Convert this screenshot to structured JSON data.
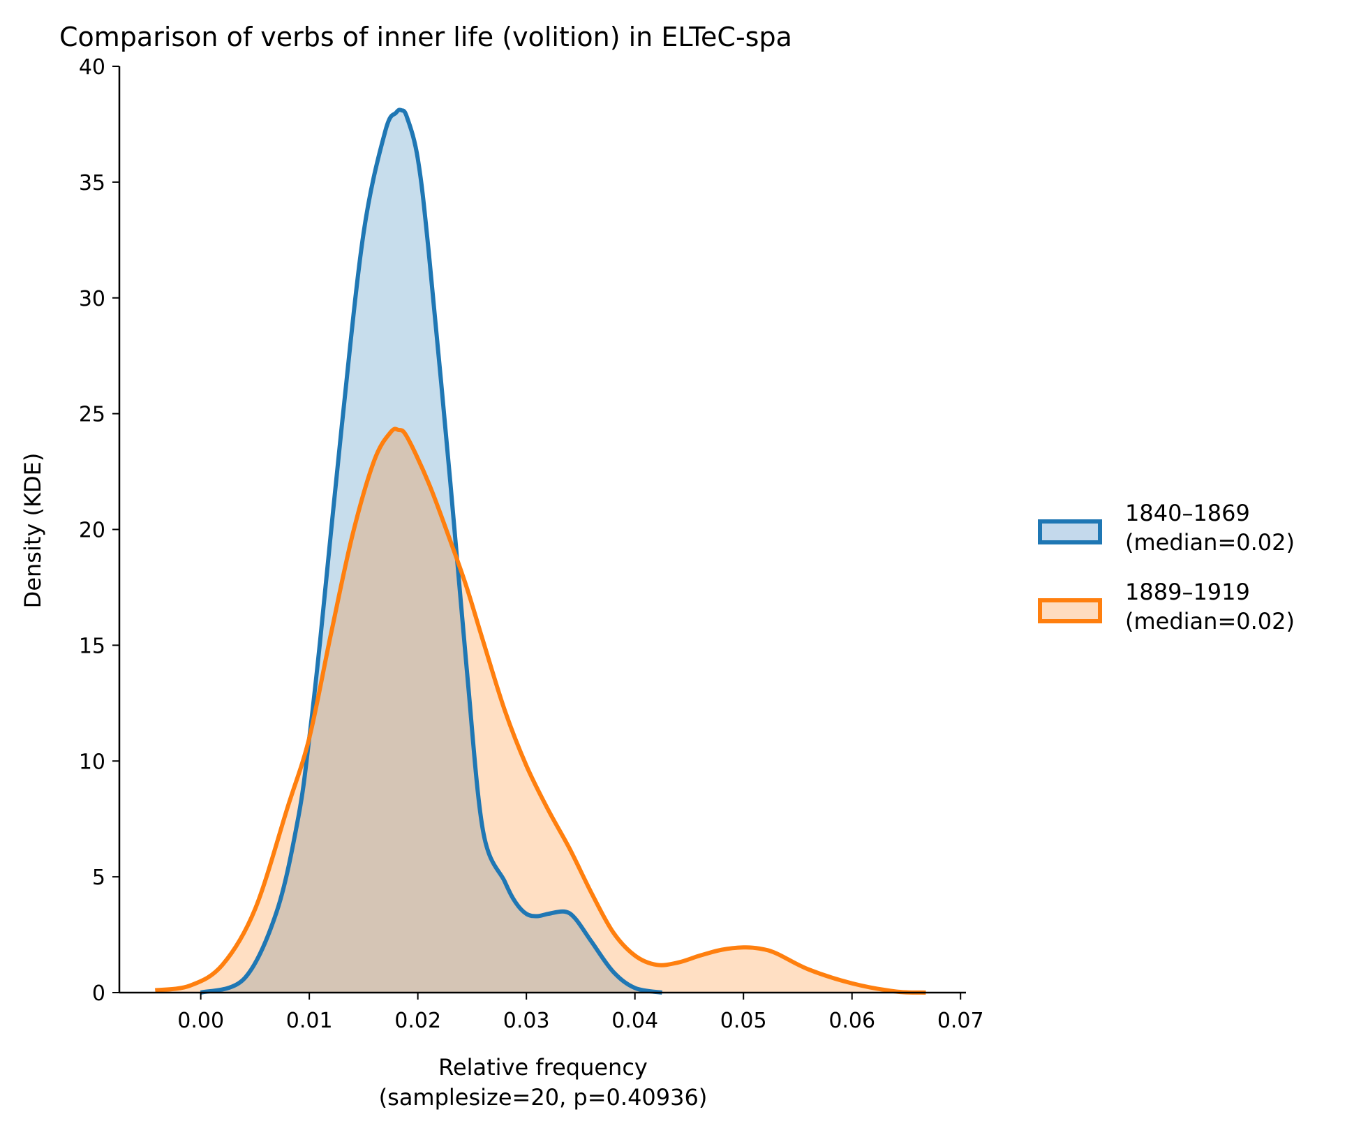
{
  "chart_data": {
    "type": "area",
    "title": "Comparison of verbs of inner life (volition) in ELTeC-spa",
    "xlabel": [
      "Relative frequency",
      "(samplesize=20, p=0.40936)"
    ],
    "ylabel": "Density (KDE)",
    "xlim": [
      -0.0075,
      0.0705
    ],
    "ylim": [
      0,
      40
    ],
    "xticks": [
      0.0,
      0.01,
      0.02,
      0.03,
      0.04,
      0.05,
      0.06,
      0.07
    ],
    "xtick_labels": [
      "0.00",
      "0.01",
      "0.02",
      "0.03",
      "0.04",
      "0.05",
      "0.06",
      "0.07"
    ],
    "yticks": [
      0,
      5,
      10,
      15,
      20,
      25,
      30,
      35,
      40
    ],
    "ytick_labels": [
      "0",
      "5",
      "10",
      "15",
      "20",
      "25",
      "30",
      "35",
      "40"
    ],
    "grid": false,
    "legend_position": "right",
    "series": [
      {
        "name": "1840–1869\n(median=0.02)",
        "color": "#1f77b4",
        "fill_color": "#c4d9ec",
        "x": [
          0.0,
          0.004,
          0.007,
          0.009,
          0.01,
          0.011,
          0.013,
          0.015,
          0.017,
          0.018,
          0.0185,
          0.019,
          0.02,
          0.021,
          0.023,
          0.0245,
          0.026,
          0.028,
          0.029,
          0.03,
          0.031,
          0.032,
          0.0335,
          0.0345,
          0.036,
          0.038,
          0.04,
          0.0425
        ],
        "y": [
          0.0,
          0.6,
          3.5,
          7.6,
          11.0,
          15.2,
          24.5,
          32.8,
          37.2,
          38.0,
          38.1,
          37.8,
          36.0,
          32.0,
          22.0,
          14.0,
          7.0,
          4.8,
          3.9,
          3.4,
          3.3,
          3.4,
          3.5,
          3.2,
          2.2,
          0.9,
          0.2,
          0.0
        ]
      },
      {
        "name": "1889–1919\n(median=0.02)",
        "color": "#ff7f0e",
        "fill_color": "#fedcbf",
        "x": [
          -0.0042,
          -0.001,
          0.002,
          0.005,
          0.008,
          0.01,
          0.012,
          0.014,
          0.016,
          0.0175,
          0.0182,
          0.019,
          0.021,
          0.023,
          0.0245,
          0.026,
          0.028,
          0.03,
          0.032,
          0.034,
          0.036,
          0.038,
          0.04,
          0.042,
          0.044,
          0.046,
          0.048,
          0.05,
          0.0515,
          0.053,
          0.056,
          0.06,
          0.064,
          0.0668
        ],
        "y": [
          0.1,
          0.3,
          1.2,
          3.6,
          8.0,
          11.0,
          15.5,
          19.8,
          23.0,
          24.2,
          24.3,
          24.0,
          22.0,
          19.5,
          17.5,
          15.2,
          12.2,
          9.8,
          7.9,
          6.2,
          4.3,
          2.6,
          1.6,
          1.2,
          1.3,
          1.6,
          1.85,
          1.95,
          1.9,
          1.7,
          1.0,
          0.4,
          0.05,
          0.0
        ]
      }
    ]
  }
}
